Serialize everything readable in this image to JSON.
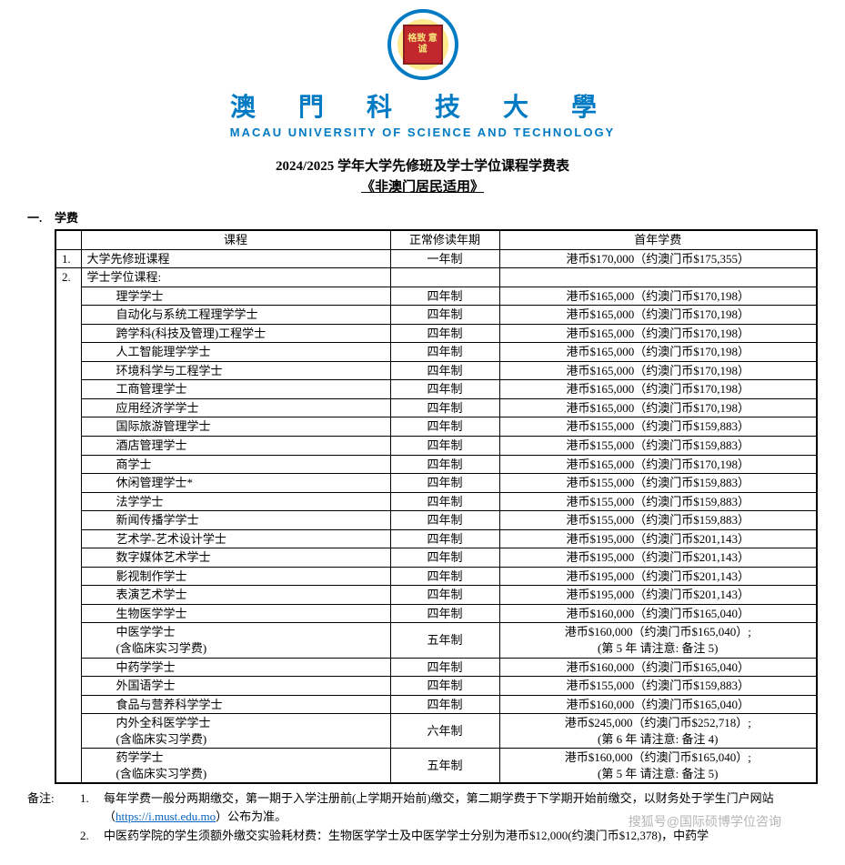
{
  "university": {
    "logo_text": "格致\n意诚",
    "name_ch": "澳 門 科 技 大 學",
    "name_en": "MACAU UNIVERSITY OF SCIENCE AND TECHNOLOGY",
    "brand_color": "#007ac2"
  },
  "doc": {
    "title": "2024/2025 学年大学先修班及学士学位课程学费表",
    "subtitle": "《非澳门居民适用》"
  },
  "section": {
    "num": "一.",
    "title": "学费"
  },
  "table": {
    "headers": {
      "program": "课程",
      "duration": "正常修读年期",
      "fee": "首年学费"
    },
    "row1": {
      "idx": "1.",
      "program": "大学先修班课程",
      "duration": "一年制",
      "fee": "港币$170,000（约澳门币$175,355）"
    },
    "row2": {
      "idx": "2.",
      "group": "学士学位课程:"
    },
    "programs": [
      {
        "name": "理学学士",
        "dur": "四年制",
        "fee": "港币$165,000（约澳门币$170,198）"
      },
      {
        "name": "自动化与系统工程理学学士",
        "dur": "四年制",
        "fee": "港币$165,000（约澳门币$170,198）"
      },
      {
        "name": "跨学科(科技及管理)工程学士",
        "dur": "四年制",
        "fee": "港币$165,000（约澳门币$170,198）"
      },
      {
        "name": "人工智能理学学士",
        "dur": "四年制",
        "fee": "港币$165,000（约澳门币$170,198）"
      },
      {
        "name": "环境科学与工程学士",
        "dur": "四年制",
        "fee": "港币$165,000（约澳门币$170,198）"
      },
      {
        "name": "工商管理学士",
        "dur": "四年制",
        "fee": "港币$165,000（约澳门币$170,198）"
      },
      {
        "name": "应用经济学学士",
        "dur": "四年制",
        "fee": "港币$165,000（约澳门币$170,198）"
      },
      {
        "name": "国际旅游管理学士",
        "dur": "四年制",
        "fee": "港币$155,000（约澳门币$159,883）"
      },
      {
        "name": "酒店管理学士",
        "dur": "四年制",
        "fee": "港币$155,000（约澳门币$159,883）"
      },
      {
        "name": "商学士",
        "dur": "四年制",
        "fee": "港币$165,000（约澳门币$170,198）"
      },
      {
        "name": "休闲管理学士*",
        "dur": "四年制",
        "fee": "港币$155,000（约澳门币$159,883）"
      },
      {
        "name": "法学学士",
        "dur": "四年制",
        "fee": "港币$155,000（约澳门币$159,883）"
      },
      {
        "name": "新闻传播学学士",
        "dur": "四年制",
        "fee": "港币$155,000（约澳门币$159,883）"
      },
      {
        "name": "艺术学-艺术设计学士",
        "dur": "四年制",
        "fee": "港币$195,000（约澳门币$201,143）"
      },
      {
        "name": "数字媒体艺术学士",
        "dur": "四年制",
        "fee": "港币$195,000（约澳门币$201,143）"
      },
      {
        "name": "影视制作学士",
        "dur": "四年制",
        "fee": "港币$195,000（约澳门币$201,143）"
      },
      {
        "name": "表演艺术学士",
        "dur": "四年制",
        "fee": "港币$195,000（约澳门币$201,143）"
      },
      {
        "name": "生物医学学士",
        "dur": "四年制",
        "fee": "港币$160,000（约澳门币$165,040）"
      }
    ],
    "tcm": {
      "name": "中医学学士",
      "sub": "(含临床实习学费)",
      "dur": "五年制",
      "fee1": "港币$160,000（约澳门币$165,040）;",
      "fee2": "(第 5 年 请注意: 备注 5)"
    },
    "programs2": [
      {
        "name": "中药学学士",
        "dur": "四年制",
        "fee": "港币$160,000（约澳门币$165,040）"
      },
      {
        "name": "外国语学士",
        "dur": "四年制",
        "fee": "港币$155,000（约澳门币$159,883）"
      },
      {
        "name": "食品与营养科学学士",
        "dur": "四年制",
        "fee": "港币$160,000（约澳门币$165,040）"
      }
    ],
    "mbbs": {
      "name": "内外全科医学学士",
      "sub": "(含临床实习学费)",
      "dur": "六年制",
      "fee1": "港币$245,000（约澳门币$252,718）;",
      "fee2": "(第 6 年 请注意: 备注 4)"
    },
    "pharm": {
      "name": "药学学士",
      "sub": "(含临床实习学费)",
      "dur": "五年制",
      "fee1": "港币$160,000（约澳门币$165,040）;",
      "fee2": "(第 5 年 请注意: 备注 5)"
    }
  },
  "notes": {
    "label": "备注:",
    "items": [
      {
        "idx": "1.",
        "text_a": "每年学费一般分两期缴交，第一期于入学注册前(上学期开始前)缴交，第二期学费于下学期开始前缴交，以财务处于学生门户网站（",
        "link": "https://i.must.edu.mo",
        "text_b": "）公布为准。"
      },
      {
        "idx": "2.",
        "text_a": "中医药学院的学生须额外缴交实验耗材费：生物医学学士及中医学学士分别为港币$12,000(约澳门币$12,378)，中药学"
      }
    ]
  },
  "watermark": "搜狐号@国际硕博学位咨询"
}
